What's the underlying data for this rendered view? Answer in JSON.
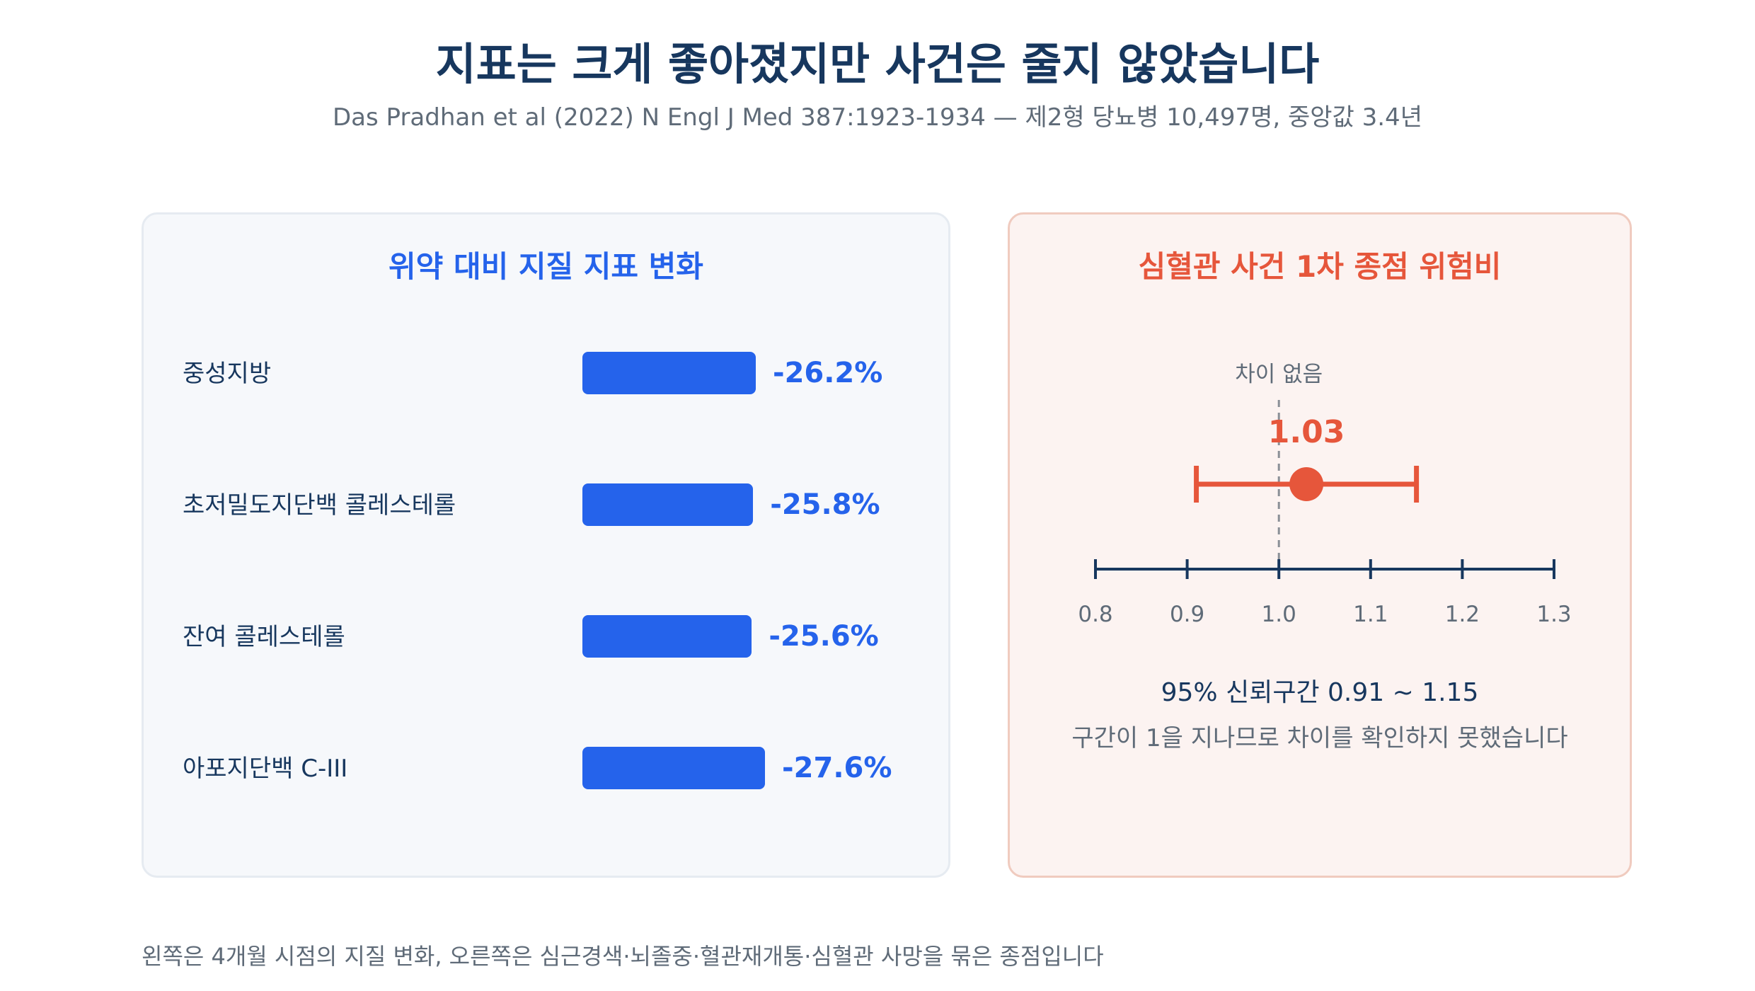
{
  "title": "지표는 크게 좋아졌지만 사건은 줄지 않았습니다",
  "subtitle": "Das Pradhan et al (2022) N Engl J Med 387:1923-1934 — 제2형 당뇨병 10,497명, 중앙값 3.4년",
  "footnote": "왼쪽은 4개월 시점의 지질 변화, 오른쪽은 심근경색·뇌졸중·혈관재개통·심혈관 사망을 묶은 종점입니다",
  "chart_data": [
    {
      "type": "bar",
      "title": "위약 대비 지질 지표 변화",
      "categories": [
        "중성지방",
        "초저밀도지단백 콜레스테롤",
        "잔여 콜레스테롤",
        "아포지단백 C-III"
      ],
      "values": [
        -26.2,
        -25.8,
        -25.6,
        -27.6
      ],
      "value_labels": [
        "-26.2%",
        "-25.8%",
        "-25.6%",
        "-27.6%"
      ],
      "orientation": "horizontal",
      "color": "#2563eb"
    },
    {
      "type": "scatter",
      "title": "심혈관 사건 1차 종점 위험비",
      "point": 1.03,
      "point_label": "1.03",
      "ci": [
        0.91,
        1.15
      ],
      "reference_line": 1.0,
      "reference_label": "차이 없음",
      "xlim": [
        0.8,
        1.3
      ],
      "xticks": [
        0.8,
        0.9,
        1.0,
        1.1,
        1.2,
        1.3
      ],
      "xtick_labels": [
        "0.8",
        "0.9",
        "1.0",
        "1.1",
        "1.2",
        "1.3"
      ],
      "ci_text": "95% 신뢰구간 0.91 ~ 1.15",
      "note": "구간이 1을 지나므로 차이를 확인하지 못했습니다",
      "color": "#e6563b",
      "axis_color": "#17375e"
    }
  ]
}
